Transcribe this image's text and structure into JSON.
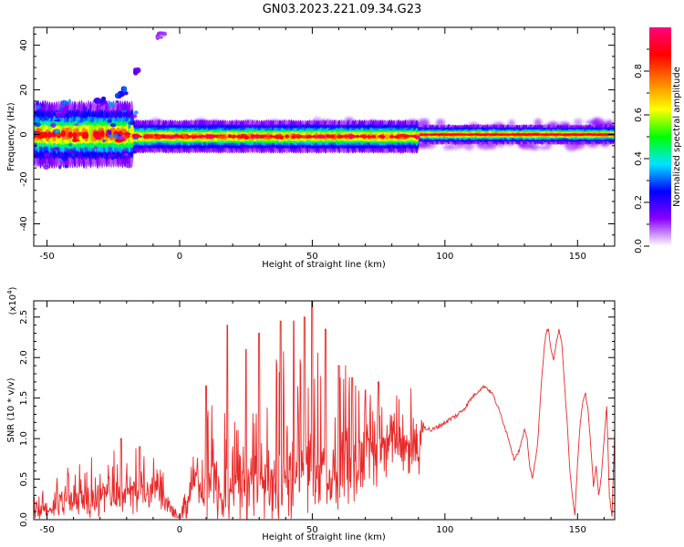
{
  "title": "GN03.2023.221.09.34.G23",
  "chart_data": [
    {
      "type": "heatmap",
      "xlabel": "Height of straight line (km)",
      "ylabel": "Frequency (Hz)",
      "xlim": [
        -55,
        164
      ],
      "ylim": [
        -50,
        48
      ],
      "xticks": [
        -50,
        0,
        50,
        100,
        150
      ],
      "yticks": [
        -40,
        -20,
        0,
        20,
        40
      ],
      "colorbar": {
        "label": "Normalized spectral amplitude",
        "range": [
          0,
          1
        ],
        "ticks": [
          "0.0",
          "0.2",
          "0.4",
          "0.6",
          "0.8"
        ],
        "tick_values": [
          0.0,
          0.2,
          0.4,
          0.6,
          0.8
        ],
        "colors": [
          "#ffffff",
          "#8a00ff",
          "#0000ff",
          "#00e5ff",
          "#00ff00",
          "#ffff00",
          "#ff8000",
          "#ff0000",
          "#ff0080"
        ]
      },
      "band": {
        "center_hz": 0,
        "segments": [
          {
            "x0": -55,
            "x1": -18,
            "halfwidth_hz": 5,
            "max_amp": 0.9
          },
          {
            "x0": -18,
            "x1": 90,
            "halfwidth_hz": 2.5,
            "max_amp": 0.95
          },
          {
            "x0": 90,
            "x1": 164,
            "halfwidth_hz": 1.5,
            "max_amp": 1.0
          }
        ],
        "scatter_above": [
          {
            "x": -22,
            "y": 18,
            "amp": 0.3
          },
          {
            "x": -20,
            "y": 20,
            "amp": 0.3
          },
          {
            "x": -16,
            "y": 28,
            "amp": 0.15
          },
          {
            "x": -7,
            "y": 44,
            "amp": 0.1
          },
          {
            "x": -30,
            "y": 15,
            "amp": 0.2
          },
          {
            "x": -45,
            "y": 10,
            "amp": 0.15
          }
        ]
      }
    },
    {
      "type": "line",
      "xlabel": "Height of straight line (km)",
      "ylabel": "SNR (10 * v/v)",
      "multiplier": "(x10",
      "multiplier_exp": "4",
      "xlim": [
        -55,
        164
      ],
      "ylim": [
        0,
        2.7
      ],
      "xticks": [
        -50,
        0,
        50,
        100,
        150
      ],
      "yticks": [
        "0.0",
        "0.5",
        "1.0",
        "1.5",
        "2.0",
        "2.5"
      ],
      "ytick_values": [
        0.0,
        0.5,
        1.0,
        1.5,
        2.0,
        2.5
      ],
      "series_color": "#e82a2a",
      "series": {
        "envelope": [
          [
            -55,
            0.15
          ],
          [
            -45,
            0.35
          ],
          [
            -35,
            0.45
          ],
          [
            -25,
            0.55
          ],
          [
            -15,
            0.6
          ],
          [
            -8,
            0.6
          ],
          [
            0,
            0.05
          ],
          [
            5,
            0.8
          ],
          [
            15,
            0.9
          ],
          [
            20,
            1.0
          ],
          [
            30,
            1.05
          ],
          [
            40,
            1.1
          ],
          [
            50,
            1.15
          ],
          [
            60,
            1.2
          ],
          [
            70,
            1.25
          ],
          [
            80,
            1.3
          ],
          [
            92,
            1.3
          ]
        ],
        "spread": [
          [
            -55,
            0.15
          ],
          [
            -30,
            0.35
          ],
          [
            -10,
            0.35
          ],
          [
            0,
            0.05
          ],
          [
            10,
            0.7
          ],
          [
            20,
            0.9
          ],
          [
            40,
            1.0
          ],
          [
            60,
            0.8
          ],
          [
            80,
            0.4
          ],
          [
            92,
            0.25
          ]
        ],
        "peaks": [
          [
            -22,
            1.0
          ],
          [
            -15,
            0.9
          ],
          [
            10,
            1.65
          ],
          [
            18,
            2.4
          ],
          [
            25,
            2.1
          ],
          [
            30,
            2.3
          ],
          [
            38,
            2.45
          ],
          [
            43,
            2.45
          ],
          [
            47,
            2.5
          ],
          [
            50,
            2.7
          ],
          [
            55,
            2.35
          ],
          [
            60,
            1.9
          ],
          [
            65,
            1.75
          ],
          [
            70,
            1.6
          ],
          [
            75,
            1.7
          ]
        ],
        "smooth": [
          [
            92,
            1.15
          ],
          [
            95,
            1.1
          ],
          [
            100,
            1.2
          ],
          [
            105,
            1.3
          ],
          [
            108,
            1.4
          ],
          [
            110,
            1.5
          ],
          [
            113,
            1.6
          ],
          [
            115,
            1.65
          ],
          [
            118,
            1.55
          ],
          [
            121,
            1.3
          ],
          [
            124,
            1.0
          ],
          [
            126,
            0.75
          ],
          [
            128,
            0.85
          ],
          [
            130,
            1.1
          ],
          [
            131,
            1.0
          ],
          [
            132,
            0.65
          ],
          [
            133,
            0.5
          ],
          [
            135,
            0.95
          ],
          [
            136,
            1.5
          ],
          [
            137,
            1.95
          ],
          [
            138,
            2.3
          ],
          [
            139,
            2.35
          ],
          [
            140,
            2.1
          ],
          [
            141,
            1.95
          ],
          [
            142,
            2.2
          ],
          [
            143,
            2.35
          ],
          [
            144,
            2.2
          ],
          [
            145,
            1.7
          ],
          [
            146,
            1.25
          ],
          [
            147,
            0.65
          ],
          [
            148,
            0.3
          ],
          [
            149,
            0.05
          ],
          [
            150,
            0.7
          ],
          [
            151,
            1.2
          ],
          [
            152,
            1.45
          ],
          [
            153,
            1.55
          ],
          [
            154,
            1.35
          ],
          [
            155,
            0.9
          ],
          [
            156,
            0.4
          ],
          [
            157,
            0.65
          ],
          [
            158,
            0.3
          ],
          [
            159,
            0.55
          ],
          [
            160,
            1.0
          ],
          [
            161,
            1.4
          ],
          [
            162,
            0.3
          ],
          [
            163,
            0.05
          ],
          [
            164,
            1.1
          ]
        ]
      }
    }
  ]
}
